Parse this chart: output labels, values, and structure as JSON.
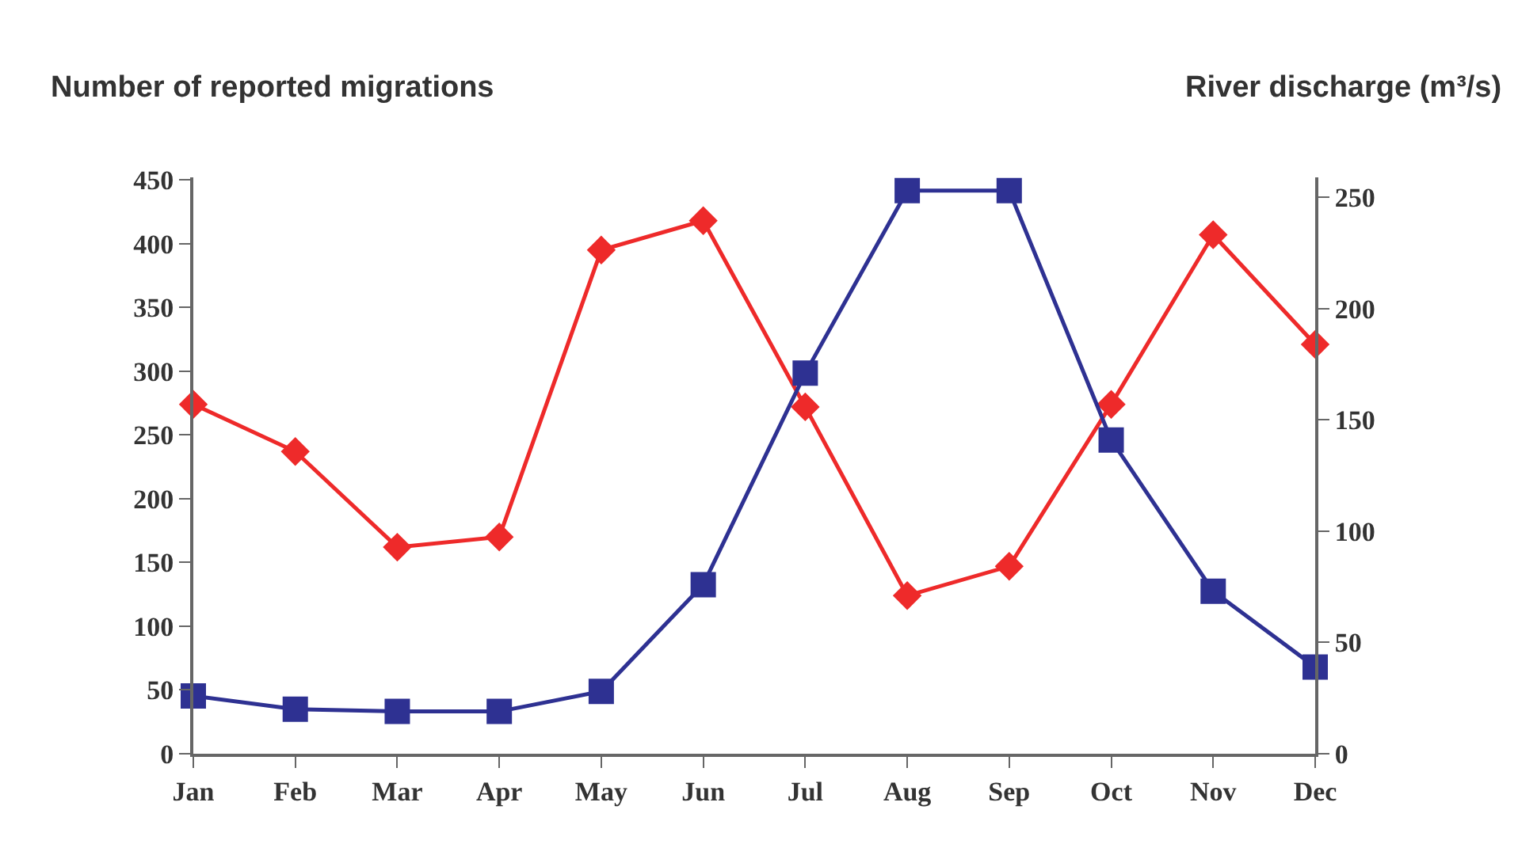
{
  "chart_data": {
    "type": "line",
    "ylabel": "Number of reported migrations",
    "y2label": "River discharge (m³/s)",
    "categories": [
      "Jan",
      "Feb",
      "Mar",
      "Apr",
      "May",
      "Jun",
      "Jul",
      "Aug",
      "Sep",
      "Oct",
      "Nov",
      "Dec"
    ],
    "series": [
      {
        "color": "#ee2a2a",
        "marker": "diamond",
        "values": [
          274,
          237,
          162,
          170,
          395,
          418,
          272,
          124,
          147,
          274,
          407,
          321
        ]
      },
      {
        "color": "#2e3192",
        "marker": "square",
        "axis": "y2",
        "values": [
          26,
          20,
          19,
          19,
          28,
          76,
          171,
          253,
          253,
          141,
          73,
          39
        ]
      }
    ],
    "ylim": [
      0,
      452
    ],
    "yticks": [
      0,
      50,
      100,
      150,
      200,
      250,
      300,
      350,
      400,
      450
    ],
    "y2lim": [
      0,
      259
    ],
    "y2ticks": [
      0,
      50,
      100,
      150,
      200,
      250
    ],
    "grid": false,
    "line_style": "solid"
  }
}
